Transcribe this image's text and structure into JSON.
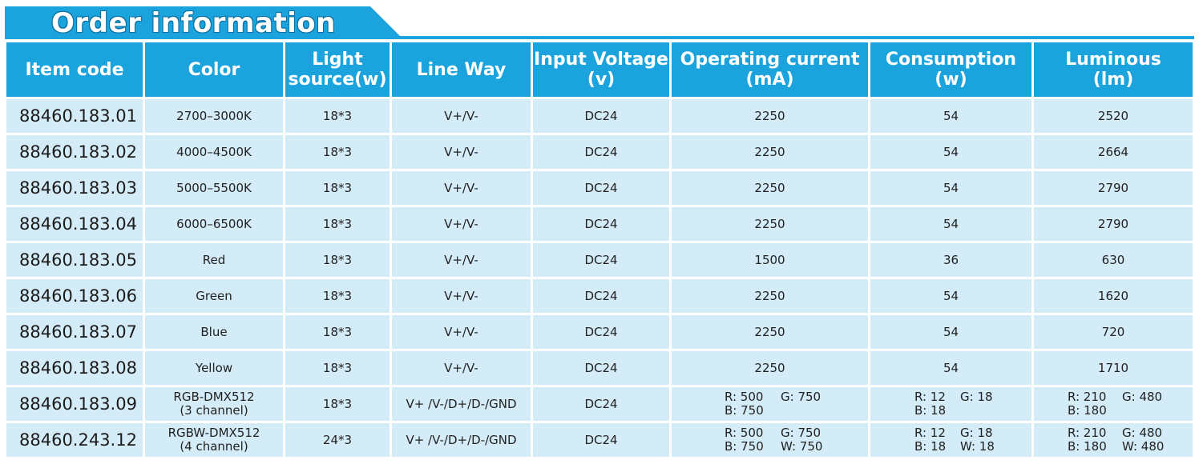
{
  "title": "Order information",
  "colors": {
    "header_bg": "#1aa3dc",
    "row_bg": "#d4ebf8",
    "title_text": "#ffffff"
  },
  "columns": [
    [
      "Item code"
    ],
    [
      "Color"
    ],
    [
      "Light",
      "source(w)"
    ],
    [
      "Line Way"
    ],
    [
      "Input Voltage",
      "(v)"
    ],
    [
      "Operating current",
      "(mA)"
    ],
    [
      "Consumption",
      "(w)"
    ],
    [
      "Luminous",
      "(lm)"
    ]
  ],
  "rows": [
    {
      "code": "88460.183.01",
      "color": [
        "2700–3000K"
      ],
      "light": "18*3",
      "line": "V+/V-",
      "voltage": "DC24",
      "current": "2250",
      "consumption": "54",
      "luminous": "2520"
    },
    {
      "code": "88460.183.02",
      "color": [
        "4000–4500K"
      ],
      "light": "18*3",
      "line": "V+/V-",
      "voltage": "DC24",
      "current": "2250",
      "consumption": "54",
      "luminous": "2664"
    },
    {
      "code": "88460.183.03",
      "color": [
        "5000–5500K"
      ],
      "light": "18*3",
      "line": "V+/V-",
      "voltage": "DC24",
      "current": "2250",
      "consumption": "54",
      "luminous": "2790"
    },
    {
      "code": "88460.183.04",
      "color": [
        "6000–6500K"
      ],
      "light": "18*3",
      "line": "V+/V-",
      "voltage": "DC24",
      "current": "2250",
      "consumption": "54",
      "luminous": "2790"
    },
    {
      "code": "88460.183.05",
      "color": [
        "Red"
      ],
      "light": "18*3",
      "line": "V+/V-",
      "voltage": "DC24",
      "current": "1500",
      "consumption": "36",
      "luminous": "630"
    },
    {
      "code": "88460.183.06",
      "color": [
        "Green"
      ],
      "light": "18*3",
      "line": "V+/V-",
      "voltage": "DC24",
      "current": "2250",
      "consumption": "54",
      "luminous": "1620"
    },
    {
      "code": "88460.183.07",
      "color": [
        "Blue"
      ],
      "light": "18*3",
      "line": "V+/V-",
      "voltage": "DC24",
      "current": "2250",
      "consumption": "54",
      "luminous": "720"
    },
    {
      "code": "88460.183.08",
      "color": [
        "Yellow"
      ],
      "light": "18*3",
      "line": "V+/V-",
      "voltage": "DC24",
      "current": "2250",
      "consumption": "54",
      "luminous": "1710"
    },
    {
      "code": "88460.183.09",
      "color": [
        "RGB-DMX512",
        "(3 channel)"
      ],
      "light": "18*3",
      "line": "V+ /V-/D+/D-/GND",
      "voltage": "DC24",
      "current": [
        [
          "R: 500",
          "G: 750"
        ],
        [
          "B: 750",
          ""
        ]
      ],
      "consumption": [
        [
          "R: 12",
          "G: 18"
        ],
        [
          "B: 18",
          ""
        ]
      ],
      "luminous": [
        [
          "R: 210",
          "G: 480"
        ],
        [
          "B: 180",
          ""
        ]
      ]
    },
    {
      "code": "88460.243.12",
      "color": [
        "RGBW-DMX512",
        "(4 channel)"
      ],
      "light": "24*3",
      "line": "V+ /V-/D+/D-/GND",
      "voltage": "DC24",
      "current": [
        [
          "R: 500",
          "G: 750"
        ],
        [
          "B: 750",
          "W: 750"
        ]
      ],
      "consumption": [
        [
          "R: 12",
          "G: 18"
        ],
        [
          "B: 18",
          "W: 18"
        ]
      ],
      "luminous": [
        [
          "R: 210",
          "G: 480"
        ],
        [
          "B: 180",
          "W: 480"
        ]
      ]
    }
  ]
}
